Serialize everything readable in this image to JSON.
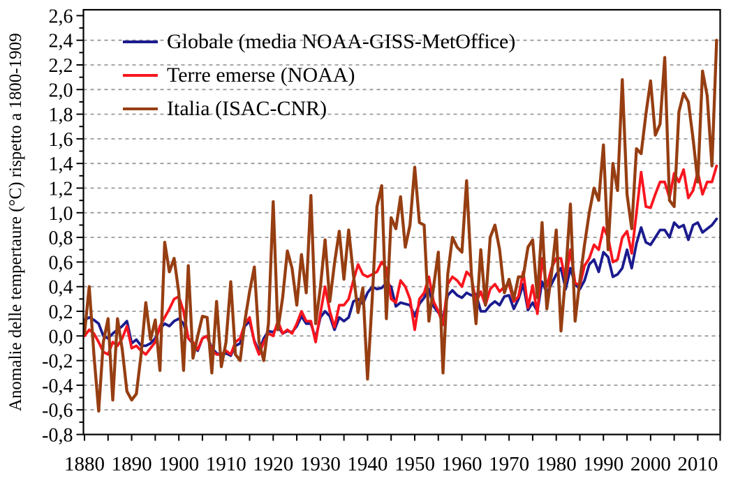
{
  "chart_data": {
    "type": "line",
    "title": "",
    "xlabel": "",
    "ylabel": "Anomalie delle tempertaure (°C) rispetto a 1800-1909",
    "xlim": [
      1880,
      2015
    ],
    "ylim": [
      -0.8,
      2.68
    ],
    "grid": "horizontal-dashed",
    "grid_levels_from": -0.6,
    "grid_levels_to": 2.4,
    "legend_position": "top-left",
    "background_color": "#ffffff",
    "axis_color": "#000000",
    "grid_color": "#999999",
    "x_start_year": 1880,
    "x_end_year": 2014,
    "x_tick_minor_step_years": 5,
    "y_tick_minor_step": 0.1,
    "x_tick_labels": [
      "1880",
      "1890",
      "1900",
      "1910",
      "1920",
      "1930",
      "1940",
      "1950",
      "1960",
      "1970",
      "1980",
      "1990",
      "2000",
      "2010"
    ],
    "x_tick_label_years": [
      1880,
      1890,
      1900,
      1910,
      1920,
      1930,
      1940,
      1950,
      1960,
      1970,
      1980,
      1990,
      2000,
      2010
    ],
    "y_ticks": [
      {
        "value": -0.8,
        "label": "-0,8"
      },
      {
        "value": -0.6,
        "label": "-0,6"
      },
      {
        "value": -0.4,
        "label": "-0,4"
      },
      {
        "value": -0.2,
        "label": "-0,2"
      },
      {
        "value": 0.0,
        "label": "0,0"
      },
      {
        "value": 0.2,
        "label": "0,2"
      },
      {
        "value": 0.4,
        "label": "0,4"
      },
      {
        "value": 0.6,
        "label": "0,6"
      },
      {
        "value": 0.8,
        "label": "0,8"
      },
      {
        "value": 1.0,
        "label": "1,0"
      },
      {
        "value": 1.2,
        "label": "1,2"
      },
      {
        "value": 1.4,
        "label": "1,4"
      },
      {
        "value": 1.6,
        "label": "1,6"
      },
      {
        "value": 1.8,
        "label": "1,8"
      },
      {
        "value": 2.0,
        "label": "2,0"
      },
      {
        "value": 2.2,
        "label": "2,2"
      },
      {
        "value": 2.4,
        "label": "2,4"
      },
      {
        "value": 2.6,
        "label": "2,6"
      }
    ],
    "series": [
      {
        "name": "Globale (media NOAA-GISS-MetOffice)",
        "color": "#1b1b8e",
        "line_width": 3.8,
        "values": [
          0.13,
          0.15,
          0.13,
          0.1,
          0.0,
          -0.02,
          0.02,
          0.05,
          0.08,
          0.12,
          -0.06,
          -0.03,
          -0.08,
          -0.08,
          -0.06,
          -0.02,
          0.06,
          0.1,
          0.08,
          0.12,
          0.14,
          0.1,
          -0.02,
          -0.06,
          -0.12,
          -0.02,
          0.0,
          -0.1,
          -0.14,
          -0.16,
          -0.14,
          -0.16,
          -0.08,
          -0.06,
          0.08,
          0.12,
          -0.04,
          -0.12,
          -0.02,
          0.04,
          0.03,
          0.08,
          0.02,
          0.04,
          0.03,
          0.08,
          0.16,
          0.1,
          0.1,
          -0.02,
          0.15,
          0.2,
          0.16,
          0.05,
          0.15,
          0.12,
          0.15,
          0.28,
          0.3,
          0.26,
          0.35,
          0.4,
          0.38,
          0.39,
          0.43,
          0.4,
          0.24,
          0.27,
          0.26,
          0.25,
          0.16,
          0.26,
          0.31,
          0.38,
          0.24,
          0.19,
          0.15,
          0.33,
          0.37,
          0.33,
          0.31,
          0.35,
          0.33,
          0.34,
          0.2,
          0.2,
          0.25,
          0.28,
          0.25,
          0.32,
          0.33,
          0.22,
          0.3,
          0.42,
          0.21,
          0.27,
          0.2,
          0.44,
          0.35,
          0.42,
          0.5,
          0.55,
          0.38,
          0.55,
          0.42,
          0.38,
          0.45,
          0.58,
          0.62,
          0.52,
          0.68,
          0.64,
          0.48,
          0.5,
          0.55,
          0.7,
          0.55,
          0.75,
          0.88,
          0.76,
          0.74,
          0.8,
          0.86,
          0.86,
          0.8,
          0.92,
          0.88,
          0.9,
          0.78,
          0.9,
          0.92,
          0.84,
          0.87,
          0.9,
          0.95
        ]
      },
      {
        "name": "Terre emerse (NOAA)",
        "color": "#f9151e",
        "line_width": 3.8,
        "values": [
          0.0,
          0.05,
          0.02,
          -0.05,
          -0.13,
          -0.15,
          -0.05,
          -0.08,
          -0.02,
          0.08,
          -0.1,
          -0.08,
          -0.12,
          -0.15,
          -0.1,
          -0.05,
          0.08,
          0.15,
          0.22,
          0.3,
          0.32,
          0.2,
          -0.02,
          -0.05,
          -0.11,
          -0.02,
          0.0,
          -0.12,
          -0.15,
          -0.15,
          -0.12,
          -0.15,
          -0.05,
          -0.02,
          0.1,
          0.15,
          -0.05,
          -0.15,
          -0.05,
          0.02,
          0.0,
          0.12,
          0.02,
          0.05,
          0.02,
          0.1,
          0.2,
          0.12,
          0.12,
          -0.05,
          0.18,
          0.4,
          0.2,
          0.07,
          0.25,
          0.25,
          0.3,
          0.45,
          0.58,
          0.5,
          0.48,
          0.5,
          0.52,
          0.6,
          0.55,
          0.3,
          0.27,
          0.45,
          0.4,
          0.3,
          0.05,
          0.3,
          0.35,
          0.48,
          0.28,
          0.2,
          0.09,
          0.42,
          0.48,
          0.45,
          0.4,
          0.52,
          0.48,
          0.27,
          0.36,
          0.25,
          0.38,
          0.42,
          0.36,
          0.4,
          0.42,
          0.28,
          0.32,
          0.52,
          0.23,
          0.41,
          0.18,
          0.63,
          0.4,
          0.55,
          0.63,
          0.63,
          0.44,
          0.7,
          0.43,
          0.41,
          0.57,
          0.63,
          0.74,
          0.7,
          0.88,
          0.8,
          0.6,
          0.62,
          0.8,
          0.85,
          0.67,
          1.0,
          1.33,
          1.05,
          1.04,
          1.15,
          1.25,
          1.25,
          1.12,
          1.32,
          1.25,
          1.35,
          1.12,
          1.18,
          1.33,
          1.15,
          1.25,
          1.25,
          1.38
        ]
      },
      {
        "name": "Italia (ISAC-CNR)",
        "color": "#963e12",
        "line_width": 4.3,
        "values": [
          0.02,
          0.4,
          -0.15,
          -0.61,
          -0.05,
          0.14,
          -0.52,
          0.14,
          -0.11,
          -0.45,
          -0.52,
          -0.47,
          -0.15,
          0.27,
          -0.03,
          0.13,
          -0.28,
          0.76,
          0.52,
          0.63,
          0.35,
          -0.28,
          0.57,
          -0.18,
          0.0,
          0.16,
          0.15,
          -0.3,
          0.28,
          -0.25,
          -0.05,
          0.44,
          -0.15,
          -0.2,
          0.12,
          0.36,
          0.56,
          -0.05,
          -0.2,
          0.1,
          1.09,
          0.05,
          0.31,
          0.69,
          0.55,
          0.25,
          0.66,
          0.35,
          1.14,
          0.1,
          0.39,
          0.78,
          0.28,
          0.59,
          0.85,
          0.46,
          0.86,
          0.5,
          0.19,
          0.39,
          -0.35,
          0.31,
          1.05,
          1.22,
          0.14,
          0.96,
          0.87,
          1.13,
          0.72,
          0.9,
          1.37,
          0.92,
          0.9,
          0.12,
          0.4,
          0.68,
          -0.3,
          0.5,
          0.8,
          0.72,
          0.68,
          1.26,
          0.51,
          0.1,
          0.7,
          0.25,
          0.8,
          0.9,
          0.7,
          0.35,
          0.46,
          0.3,
          0.48,
          0.48,
          0.72,
          0.78,
          0.31,
          0.92,
          0.22,
          0.5,
          0.86,
          0.04,
          0.5,
          1.07,
          0.12,
          0.45,
          0.74,
          1.0,
          1.2,
          1.1,
          1.55,
          0.7,
          1.4,
          1.18,
          2.08,
          1.15,
          0.87,
          1.52,
          1.48,
          1.8,
          2.07,
          1.63,
          1.72,
          2.26,
          1.1,
          1.05,
          1.82,
          1.97,
          1.9,
          1.6,
          1.25,
          2.15,
          1.95,
          1.38,
          2.4
        ]
      }
    ]
  }
}
